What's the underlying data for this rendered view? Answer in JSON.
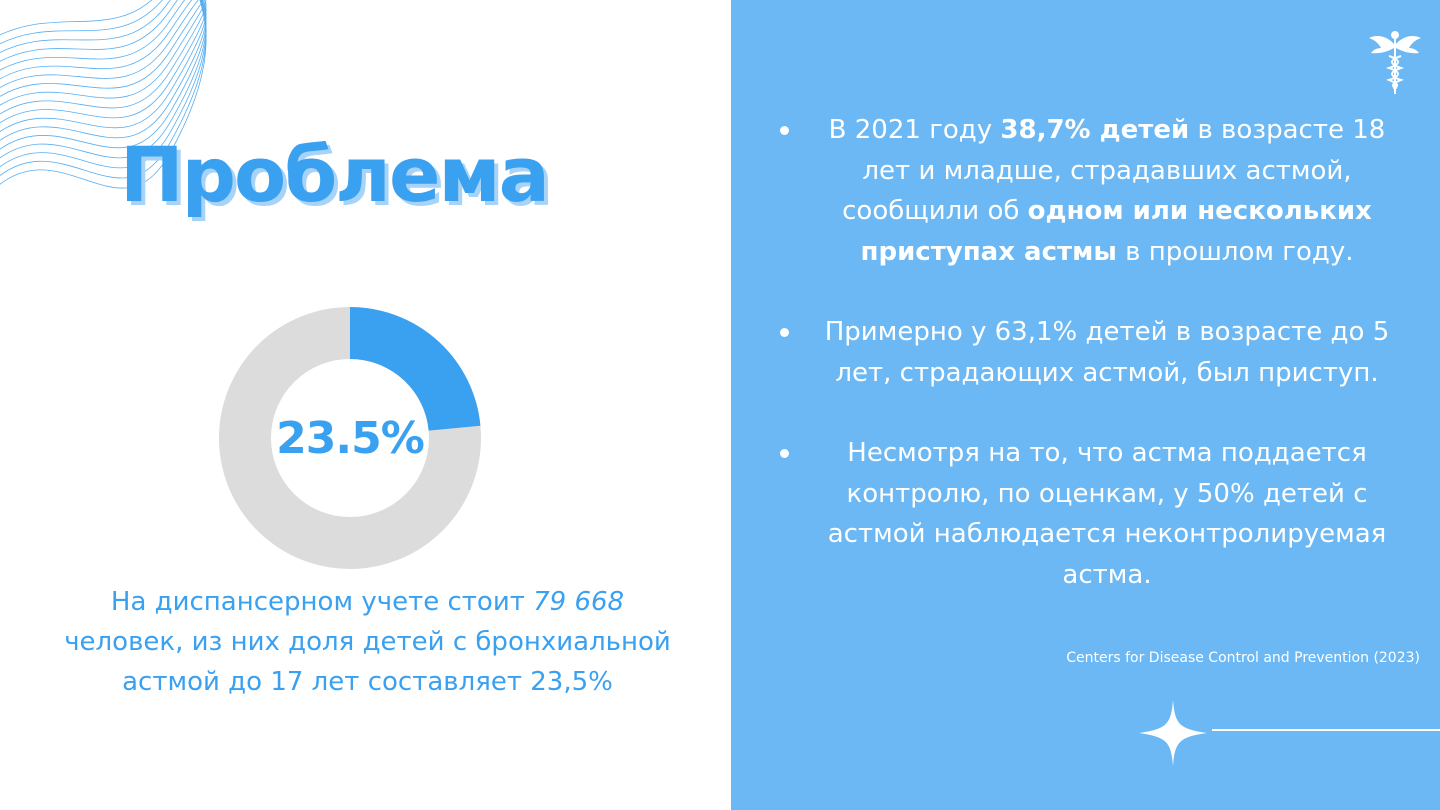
{
  "title": "Проблема",
  "donut": {
    "value_label": "23.5%",
    "fraction": 0.235,
    "fill_color": "#3aa0f0",
    "track_color": "#dcdcdc"
  },
  "caption": {
    "text_before": "На диспансерном учете стоит ",
    "number": "79 668",
    "text_after": " человек, из них доля детей с бронхиальной астмой до 17 лет составляет 23,5%"
  },
  "bullets": [
    {
      "t1": "В 2021 году ",
      "b1": "38,7% детей",
      "t2": " в возрасте 18 лет и младше, страдавших астмой, сообщили об ",
      "b2": "одном или нескольких приступах астмы",
      "t3": " в прошлом году."
    },
    {
      "text": "Примерно у 63,1% детей в возрасте до 5 лет, страдающих астмой, был приступ."
    },
    {
      "text": "Несмотря на то, что астма поддается контролю, по оценкам, у 50% детей с астмой наблюдается неконтролируемая астма."
    }
  ],
  "source": "Centers for Disease Control and Prevention (2023)",
  "icons": {
    "logo": "caduceus-icon",
    "sparkle": "sparkle-icon"
  },
  "colors": {
    "accent": "#3aa0f0",
    "panel": "#6bb8f4",
    "title_shadow": "#a7d3f8"
  }
}
